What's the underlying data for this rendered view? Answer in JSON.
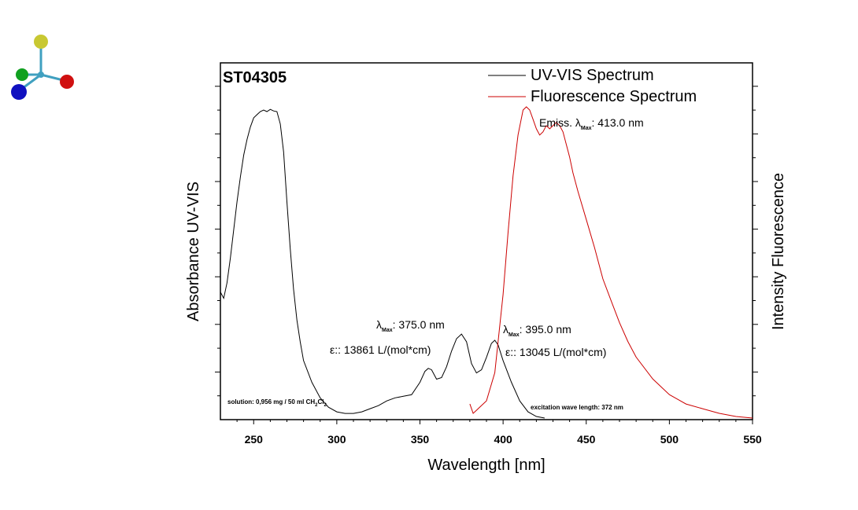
{
  "chart_data": {
    "type": "line",
    "title": "ST04305",
    "xlabel": "Wavelength [nm]",
    "ylabel": "Absorbance UV-VIS",
    "y2label": "Intensity Fluorescence",
    "xlim": [
      230,
      550
    ],
    "xticks": [
      250,
      300,
      350,
      400,
      450,
      500,
      550
    ],
    "ylim": [
      0,
      1
    ],
    "legend_position": "top-right",
    "colors": {
      "uv": "#000000",
      "fluorescence": "#cc0000"
    },
    "series": [
      {
        "name": "UV-VIS Spectrum",
        "axis": "left",
        "x": [
          230,
          232,
          234,
          236,
          238,
          240,
          242,
          244,
          246,
          248,
          250,
          252,
          254,
          256,
          258,
          260,
          262,
          264,
          266,
          268,
          270,
          272,
          274,
          276,
          278,
          280,
          285,
          290,
          295,
          300,
          305,
          310,
          315,
          320,
          325,
          330,
          335,
          340,
          345,
          350,
          353,
          355,
          357,
          360,
          363,
          366,
          369,
          372,
          375,
          378,
          381,
          384,
          387,
          390,
          393,
          395,
          397,
          400,
          405,
          410,
          415,
          420,
          425
        ],
        "y": [
          0.41,
          0.39,
          0.44,
          0.52,
          0.61,
          0.7,
          0.78,
          0.85,
          0.9,
          0.94,
          0.97,
          0.98,
          0.99,
          0.995,
          0.99,
          0.997,
          0.992,
          0.99,
          0.95,
          0.86,
          0.7,
          0.55,
          0.42,
          0.32,
          0.25,
          0.19,
          0.12,
          0.07,
          0.04,
          0.025,
          0.02,
          0.02,
          0.025,
          0.035,
          0.045,
          0.06,
          0.07,
          0.075,
          0.08,
          0.12,
          0.155,
          0.165,
          0.16,
          0.13,
          0.135,
          0.17,
          0.22,
          0.26,
          0.275,
          0.25,
          0.18,
          0.15,
          0.16,
          0.2,
          0.245,
          0.255,
          0.24,
          0.19,
          0.12,
          0.06,
          0.025,
          0.01,
          0.005
        ]
      },
      {
        "name": "Fluorescence Spectrum",
        "axis": "right",
        "x": [
          380,
          382,
          384,
          386,
          390,
          395,
          400,
          403,
          406,
          409,
          412,
          414,
          416,
          418,
          420,
          422,
          424,
          426,
          428,
          430,
          432,
          434,
          436,
          438,
          440,
          442,
          445,
          450,
          455,
          460,
          465,
          470,
          475,
          480,
          490,
          500,
          510,
          520,
          530,
          540,
          550
        ],
        "y": [
          0.05,
          0.02,
          0.03,
          0.04,
          0.06,
          0.15,
          0.4,
          0.6,
          0.78,
          0.91,
          0.99,
          1.0,
          0.99,
          0.96,
          0.93,
          0.91,
          0.92,
          0.94,
          0.93,
          0.94,
          0.95,
          0.94,
          0.92,
          0.88,
          0.84,
          0.79,
          0.73,
          0.64,
          0.55,
          0.45,
          0.38,
          0.31,
          0.25,
          0.2,
          0.13,
          0.08,
          0.05,
          0.035,
          0.02,
          0.01,
          0.005
        ]
      }
    ],
    "annotations": {
      "emission_prefix": "Emiss. ",
      "emission_value": ": 413.0 nm",
      "lambda": "λ",
      "max_sub": "Max",
      "peak1_value": ": 375.0 nm",
      "peak1_epsilon": "ε:: 13861 L/(mol*cm)",
      "peak2_value": ": 395.0 nm",
      "peak2_epsilon": "ε:: 13045 L/(mol*cm)",
      "solution_prefix": "solution: 0,956 mg / 50 ml CH",
      "solution_sub1": "2",
      "solution_mid": "Cl",
      "solution_sub2": "2",
      "excitation": "excitation wave length: 372  nm"
    }
  },
  "logo": {
    "name": "molecule-logo",
    "colors": [
      "#c8c832",
      "#10a020",
      "#1010c0",
      "#d01010",
      "#40a0c0"
    ]
  }
}
